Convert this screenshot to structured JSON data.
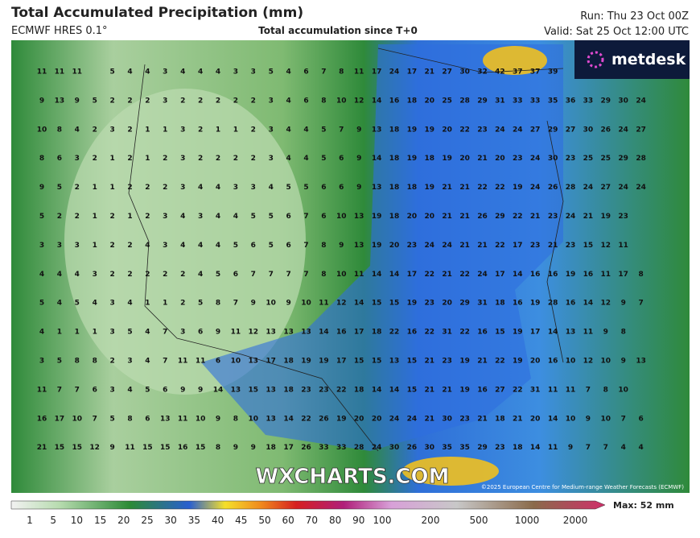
{
  "header": {
    "title": "Total Accumulated Precipitation (mm)",
    "model": "ECMWF HRES 0.1°",
    "subtitle": "Total accumulation since T+0",
    "run": "Run: Thu 23 Oct 00Z",
    "valid": "Valid: Sat 25 Oct 12:00 UTC"
  },
  "logo": "metdesk",
  "watermark": "WXCHARTS.COM",
  "copyright": "©2025 European Centre for Medium-range Weather Forecasts (ECMWF)",
  "grid": {
    "rows": [
      [
        11,
        11,
        11,
        null,
        5,
        4,
        4,
        3,
        4,
        4,
        4,
        3,
        3,
        5,
        4,
        6,
        7,
        8,
        11,
        17,
        24,
        17,
        21,
        27,
        30,
        32,
        42,
        37,
        37,
        39,
        null,
        null,
        null,
        null,
        null
      ],
      [
        9,
        13,
        9,
        5,
        2,
        2,
        2,
        3,
        2,
        2,
        2,
        2,
        2,
        3,
        4,
        6,
        8,
        10,
        12,
        14,
        16,
        18,
        20,
        25,
        28,
        29,
        31,
        33,
        33,
        35,
        36,
        33,
        29,
        30,
        24
      ],
      [
        10,
        8,
        4,
        2,
        3,
        2,
        1,
        1,
        3,
        2,
        1,
        1,
        2,
        3,
        4,
        4,
        5,
        7,
        9,
        13,
        18,
        19,
        19,
        20,
        22,
        23,
        24,
        24,
        27,
        29,
        27,
        30,
        26,
        24,
        27
      ],
      [
        8,
        6,
        3,
        2,
        1,
        2,
        1,
        2,
        3,
        2,
        2,
        2,
        2,
        3,
        4,
        4,
        5,
        6,
        9,
        14,
        18,
        19,
        18,
        19,
        20,
        21,
        20,
        23,
        24,
        30,
        23,
        25,
        25,
        29,
        28
      ],
      [
        9,
        5,
        2,
        1,
        1,
        2,
        2,
        2,
        3,
        4,
        4,
        3,
        3,
        4,
        5,
        5,
        6,
        6,
        9,
        13,
        18,
        18,
        19,
        21,
        21,
        22,
        22,
        19,
        24,
        26,
        28,
        24,
        27,
        24,
        24
      ],
      [
        5,
        2,
        2,
        1,
        2,
        1,
        2,
        3,
        4,
        3,
        4,
        4,
        5,
        5,
        6,
        7,
        6,
        10,
        13,
        19,
        18,
        20,
        20,
        21,
        21,
        26,
        29,
        22,
        21,
        23,
        24,
        21,
        19,
        23,
        null
      ],
      [
        3,
        3,
        3,
        1,
        2,
        2,
        4,
        3,
        4,
        4,
        4,
        5,
        6,
        5,
        6,
        7,
        8,
        9,
        13,
        19,
        20,
        23,
        24,
        24,
        21,
        21,
        22,
        17,
        23,
        21,
        23,
        15,
        12,
        11,
        null
      ],
      [
        4,
        4,
        4,
        3,
        2,
        2,
        2,
        2,
        2,
        4,
        5,
        6,
        7,
        7,
        7,
        7,
        8,
        10,
        11,
        14,
        14,
        17,
        22,
        21,
        22,
        24,
        17,
        14,
        16,
        16,
        19,
        16,
        11,
        17,
        8
      ],
      [
        5,
        4,
        5,
        4,
        3,
        4,
        1,
        1,
        2,
        5,
        8,
        7,
        9,
        10,
        9,
        10,
        11,
        12,
        14,
        15,
        15,
        19,
        23,
        20,
        29,
        31,
        18,
        16,
        19,
        28,
        16,
        14,
        12,
        9,
        7
      ],
      [
        4,
        1,
        1,
        1,
        3,
        5,
        4,
        7,
        3,
        6,
        9,
        11,
        12,
        13,
        13,
        13,
        14,
        16,
        17,
        18,
        22,
        16,
        22,
        31,
        22,
        16,
        15,
        19,
        17,
        14,
        13,
        11,
        9,
        8,
        null
      ],
      [
        3,
        5,
        8,
        8,
        2,
        3,
        4,
        7,
        11,
        11,
        6,
        10,
        13,
        17,
        18,
        19,
        19,
        17,
        15,
        15,
        13,
        15,
        21,
        23,
        19,
        21,
        22,
        19,
        20,
        16,
        10,
        12,
        10,
        9,
        13
      ],
      [
        11,
        7,
        7,
        6,
        3,
        4,
        5,
        6,
        9,
        9,
        14,
        13,
        15,
        13,
        18,
        23,
        23,
        22,
        18,
        14,
        14,
        15,
        21,
        21,
        19,
        16,
        27,
        22,
        31,
        11,
        11,
        7,
        8,
        10,
        null
      ],
      [
        16,
        17,
        10,
        7,
        5,
        8,
        6,
        13,
        11,
        10,
        9,
        8,
        10,
        13,
        14,
        22,
        26,
        19,
        20,
        20,
        24,
        24,
        21,
        30,
        23,
        21,
        18,
        21,
        20,
        14,
        10,
        9,
        10,
        7,
        6
      ],
      [
        21,
        15,
        15,
        12,
        9,
        11,
        15,
        15,
        16,
        15,
        8,
        9,
        9,
        18,
        17,
        26,
        33,
        33,
        28,
        24,
        30,
        26,
        30,
        35,
        35,
        29,
        23,
        18,
        14,
        11,
        9,
        7,
        7,
        4,
        4
      ]
    ]
  },
  "colorbar": {
    "ticks": [
      1,
      5,
      10,
      15,
      20,
      25,
      30,
      35,
      40,
      45,
      50,
      60,
      70,
      80,
      90,
      100,
      200,
      500,
      1000,
      2000
    ],
    "max_label": "Max: 52 mm"
  }
}
